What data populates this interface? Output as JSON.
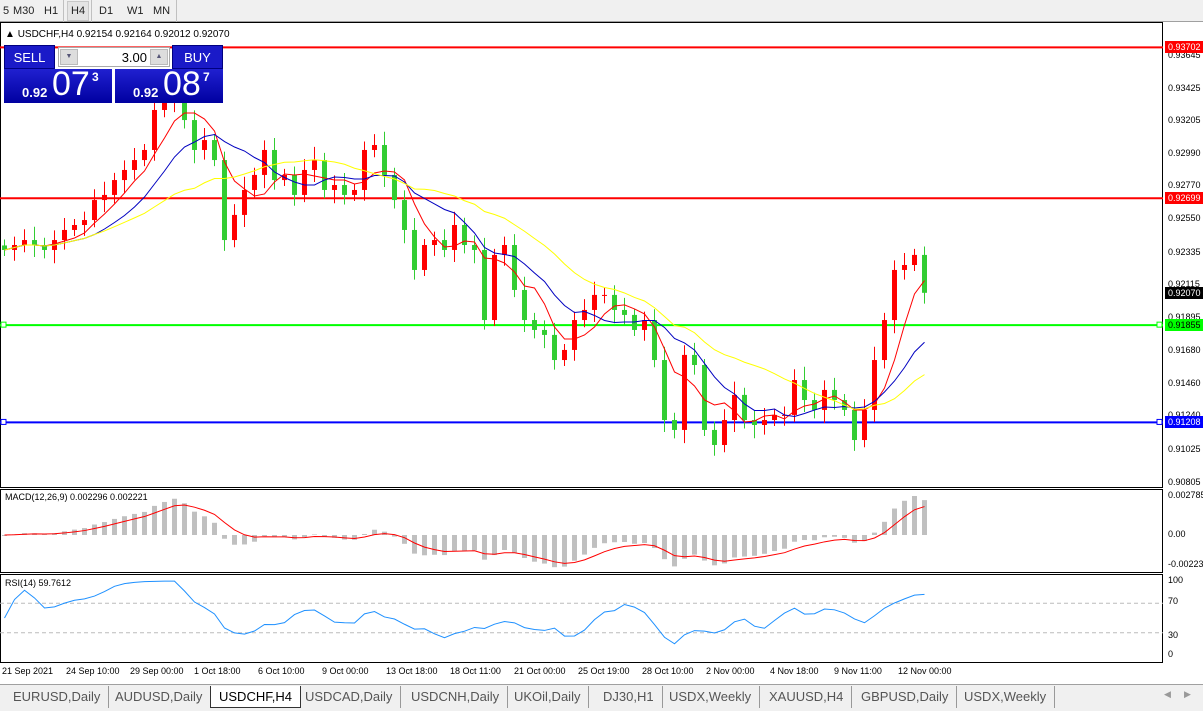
{
  "timeframes": [
    {
      "label": "5",
      "selected": false
    },
    {
      "label": "M30",
      "selected": false
    },
    {
      "label": "H1",
      "selected": false
    },
    {
      "label": "H4",
      "selected": true
    },
    {
      "label": "D1",
      "selected": false
    },
    {
      "label": "W1",
      "selected": false
    },
    {
      "label": "MN",
      "selected": false
    }
  ],
  "header": {
    "symbol": "USDCHF,H4",
    "ohlc": "0.92154 0.92164 0.92012 0.92070"
  },
  "trade": {
    "sell_label": "SELL",
    "buy_label": "BUY",
    "lot": "3.00",
    "sell_small": "0.92",
    "sell_big": "07",
    "sell_sup": "3",
    "buy_small": "0.92",
    "buy_big": "08",
    "buy_sup": "7"
  },
  "price_axis": [
    "0.93645",
    "0.93425",
    "0.93205",
    "0.92990",
    "0.92770",
    "0.92550",
    "0.92335",
    "0.92115",
    "0.91895",
    "0.91680",
    "0.91460",
    "0.91240",
    "0.91025",
    "0.90805"
  ],
  "hlines": [
    {
      "price": "0.93702",
      "color": "#ff0000"
    },
    {
      "price": "0.92699",
      "color": "#ff0000"
    },
    {
      "price": "0.91855",
      "color": "#00ff00"
    },
    {
      "price": "0.91208",
      "color": "#0000ff"
    }
  ],
  "current_price": "0.92070",
  "colors": {
    "up": "#ff0000",
    "down": "#32cd32",
    "ma_fast": "#ff0000",
    "ma_mid": "#0000c0",
    "ma_slow": "#ffff00",
    "macd_hist": "#c0c0c0",
    "macd_signal": "#ff0000",
    "rsi": "#1e90ff"
  },
  "x_axis": [
    "21 Sep 2021",
    "24 Sep 10:00",
    "29 Sep 00:00",
    "1 Oct 18:00",
    "6 Oct 10:00",
    "9 Oct 00:00",
    "13 Oct 18:00",
    "18 Oct 11:00",
    "21 Oct 00:00",
    "25 Oct 19:00",
    "28 Oct 10:00",
    "2 Nov 00:00",
    "4 Nov 18:00",
    "9 Nov 11:00",
    "12 Nov 00:00"
  ],
  "macd": {
    "label": "MACD(12,26,9) 0.002296 0.002221",
    "axis": [
      "0.002785",
      "0.00",
      "-0.00223"
    ]
  },
  "rsi": {
    "label": "RSI(14) 59.7612",
    "axis": [
      "100",
      "70",
      "30",
      "0"
    ]
  },
  "tabs": [
    {
      "label": "EURUSD,Daily"
    },
    {
      "label": "AUDUSD,Daily"
    },
    {
      "label": "USDCHF,H4",
      "active": true
    },
    {
      "label": "USDCAD,Daily"
    },
    {
      "label": "USDCNH,Daily"
    },
    {
      "label": "UKOil,Daily"
    },
    {
      "label": "DJ30,H1"
    },
    {
      "label": "USDX,Weekly"
    },
    {
      "label": "XAUUSD,H4"
    },
    {
      "label": "GBPUSD,Daily"
    },
    {
      "label": "USDX,Weekly"
    }
  ],
  "chart_data": {
    "type": "candlestick",
    "symbol": "USDCHF",
    "timeframe": "H4",
    "ylim": [
      0.90805,
      0.93645
    ],
    "closes": [
      0.92355,
      0.92388,
      0.92421,
      0.92388,
      0.92355,
      0.92421,
      0.92488,
      0.92521,
      0.92554,
      0.92687,
      0.92721,
      0.9282,
      0.92887,
      0.92953,
      0.9302,
      0.93286,
      0.93352,
      0.93452,
      0.93219,
      0.9302,
      0.93086,
      0.92953,
      0.92421,
      0.92588,
      0.92754,
      0.92854,
      0.9302,
      0.9282,
      0.92854,
      0.92721,
      0.92887,
      0.92953,
      0.92754,
      0.92787,
      0.92721,
      0.92754,
      0.9302,
      0.93053,
      0.92854,
      0.92687,
      0.92488,
      0.92222,
      0.92388,
      0.92421,
      0.92355,
      0.92521,
      0.92388,
      0.92355,
      0.91889,
      0.92322,
      0.92388,
      0.92089,
      0.91889,
      0.91823,
      0.9179,
      0.91623,
      0.9169,
      0.91889,
      0.91956,
      0.92056,
      0.92056,
      0.91956,
      0.91923,
      0.91823,
      0.91889,
      0.91623,
      0.91224,
      0.91158,
      0.91657,
      0.9159,
      0.91158,
      0.91058,
      0.91224,
      0.91391,
      0.91224,
      0.91191,
      0.91224,
      0.91258,
      0.91258,
      0.9149,
      0.91357,
      0.91291,
      0.91424,
      0.91357,
      0.91291,
      0.91091,
      0.91291,
      0.91623,
      0.91889,
      0.92222,
      0.92255,
      0.92322,
      0.9207
    ]
  }
}
